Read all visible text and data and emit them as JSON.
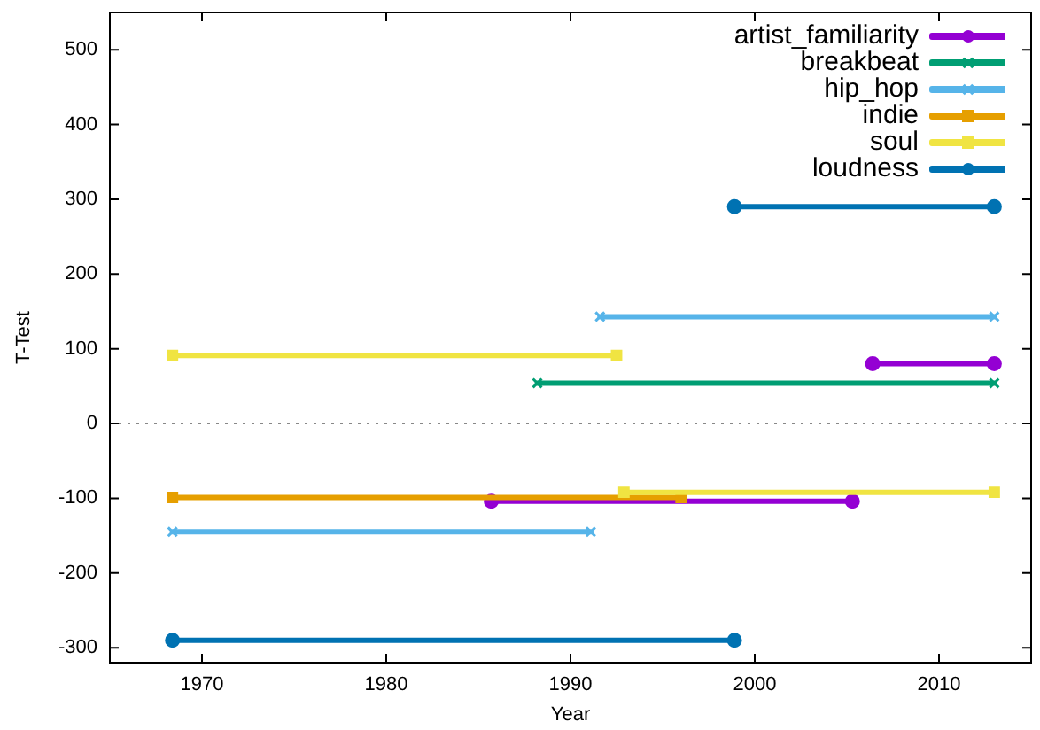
{
  "chart_data": {
    "type": "line",
    "xlabel": "Year",
    "ylabel": "T-Test",
    "xlim": [
      1965,
      2015
    ],
    "ylim": [
      -320,
      550
    ],
    "xticks": [
      1970,
      1980,
      1990,
      2000,
      2010
    ],
    "yticks": [
      -300,
      -200,
      -100,
      0,
      100,
      200,
      300,
      400,
      500
    ],
    "legend": "top right",
    "series": [
      {
        "name": "artist_familiarity",
        "color": "#9400d3",
        "marker": "circle",
        "x": [
          1985.7,
          2005.3,
          null,
          2006.4,
          2013.0
        ],
        "values": [
          -104,
          -104,
          null,
          80,
          80
        ]
      },
      {
        "name": "breakbeat",
        "color": "#009e73",
        "marker": "cross",
        "x": [
          1988.2,
          2013.0
        ],
        "values": [
          54,
          54
        ]
      },
      {
        "name": "hip_hop",
        "color": "#56b4e9",
        "marker": "cross",
        "x": [
          1968.4,
          1991.1,
          null,
          1991.6,
          2013.0
        ],
        "values": [
          -145,
          -145,
          null,
          143,
          143
        ]
      },
      {
        "name": "indie",
        "color": "#e69f00",
        "marker": "square",
        "x": [
          1968.4,
          1996.0
        ],
        "values": [
          -99,
          -99
        ]
      },
      {
        "name": "soul",
        "color": "#f0e442",
        "marker": "square",
        "x": [
          1968.4,
          1992.5,
          null,
          1992.9,
          2013.0
        ],
        "values": [
          91,
          91,
          null,
          -92,
          -92
        ]
      },
      {
        "name": "loudness",
        "color": "#0072b2",
        "marker": "circle",
        "x": [
          1968.4,
          1998.9,
          null,
          1998.9,
          2013.0
        ],
        "values": [
          -290,
          -290,
          null,
          290,
          290
        ]
      }
    ],
    "ref_lines": [
      {
        "axis": "y",
        "value": 0,
        "color": "#888888",
        "line_style": "dotted"
      }
    ]
  }
}
